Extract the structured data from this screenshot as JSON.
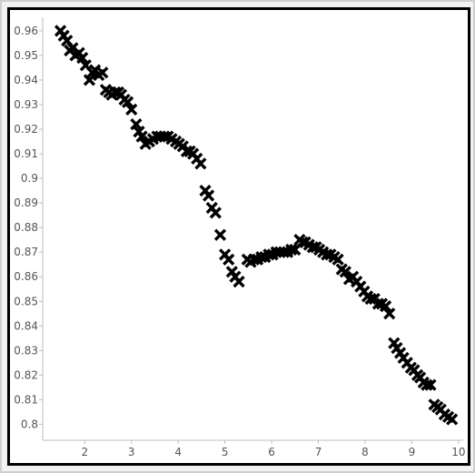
{
  "chart_data": {
    "type": "scatter",
    "title": "",
    "xlabel": "",
    "ylabel": "",
    "xlim": [
      1.1,
      10.1
    ],
    "ylim": [
      0.7935,
      0.9655
    ],
    "grid": false,
    "legend": "none",
    "marker": "x",
    "marker_color": "#000000",
    "x_ticks": [
      2,
      3,
      4,
      5,
      6,
      7,
      8,
      9,
      10
    ],
    "y_ticks": [
      0.8,
      0.81,
      0.82,
      0.83,
      0.84,
      0.85,
      0.86,
      0.87,
      0.88,
      0.89,
      0.9,
      0.91,
      0.92,
      0.93,
      0.94,
      0.95,
      0.96
    ],
    "x_tick_labels": [
      "2",
      "3",
      "4",
      "5",
      "6",
      "7",
      "8",
      "9",
      "10"
    ],
    "y_tick_labels": [
      "0.8",
      "0.81",
      "0.82",
      "0.83",
      "0.84",
      "0.85",
      "0.86",
      "0.87",
      "0.88",
      "0.89",
      "0.9",
      "0.91",
      "0.92",
      "0.93",
      "0.94",
      "0.95",
      "0.96"
    ],
    "series": [
      {
        "points": [
          [
            1.48,
            0.96
          ],
          [
            1.55,
            0.958
          ],
          [
            1.62,
            0.956
          ],
          [
            1.68,
            0.952
          ],
          [
            1.74,
            0.953
          ],
          [
            1.8,
            0.95
          ],
          [
            1.88,
            0.951
          ],
          [
            1.95,
            0.949
          ],
          [
            2.02,
            0.946
          ],
          [
            2.1,
            0.94
          ],
          [
            2.16,
            0.943
          ],
          [
            2.22,
            0.944
          ],
          [
            2.3,
            0.942
          ],
          [
            2.38,
            0.943
          ],
          [
            2.45,
            0.936
          ],
          [
            2.52,
            0.935
          ],
          [
            2.58,
            0.934
          ],
          [
            2.65,
            0.935
          ],
          [
            2.72,
            0.935
          ],
          [
            2.78,
            0.934
          ],
          [
            2.85,
            0.932
          ],
          [
            2.92,
            0.931
          ],
          [
            3.0,
            0.928
          ],
          [
            3.1,
            0.922
          ],
          [
            3.16,
            0.919
          ],
          [
            3.22,
            0.917
          ],
          [
            3.3,
            0.914
          ],
          [
            3.38,
            0.915
          ],
          [
            3.46,
            0.916
          ],
          [
            3.55,
            0.917
          ],
          [
            3.62,
            0.917
          ],
          [
            3.7,
            0.917
          ],
          [
            3.78,
            0.917
          ],
          [
            3.86,
            0.916
          ],
          [
            3.95,
            0.915
          ],
          [
            4.02,
            0.914
          ],
          [
            4.1,
            0.913
          ],
          [
            4.18,
            0.911
          ],
          [
            4.25,
            0.911
          ],
          [
            4.32,
            0.91
          ],
          [
            4.4,
            0.908
          ],
          [
            4.48,
            0.906
          ],
          [
            4.58,
            0.895
          ],
          [
            4.65,
            0.893
          ],
          [
            4.72,
            0.888
          ],
          [
            4.8,
            0.886
          ],
          [
            4.9,
            0.877
          ],
          [
            5.0,
            0.869
          ],
          [
            5.08,
            0.867
          ],
          [
            5.15,
            0.862
          ],
          [
            5.22,
            0.86
          ],
          [
            5.3,
            0.858
          ],
          [
            5.48,
            0.867
          ],
          [
            5.55,
            0.866
          ],
          [
            5.62,
            0.867
          ],
          [
            5.7,
            0.867
          ],
          [
            5.78,
            0.868
          ],
          [
            5.86,
            0.868
          ],
          [
            5.94,
            0.869
          ],
          [
            6.02,
            0.869
          ],
          [
            6.1,
            0.87
          ],
          [
            6.18,
            0.87
          ],
          [
            6.26,
            0.87
          ],
          [
            6.34,
            0.87
          ],
          [
            6.42,
            0.871
          ],
          [
            6.5,
            0.871
          ],
          [
            6.6,
            0.875
          ],
          [
            6.66,
            0.874
          ],
          [
            6.72,
            0.874
          ],
          [
            6.8,
            0.873
          ],
          [
            6.88,
            0.872
          ],
          [
            6.95,
            0.872
          ],
          [
            7.02,
            0.871
          ],
          [
            7.1,
            0.87
          ],
          [
            7.18,
            0.869
          ],
          [
            7.26,
            0.869
          ],
          [
            7.34,
            0.868
          ],
          [
            7.42,
            0.867
          ],
          [
            7.5,
            0.863
          ],
          [
            7.58,
            0.862
          ],
          [
            7.66,
            0.859
          ],
          [
            7.74,
            0.86
          ],
          [
            7.82,
            0.858
          ],
          [
            7.9,
            0.856
          ],
          [
            7.98,
            0.854
          ],
          [
            8.05,
            0.852
          ],
          [
            8.12,
            0.851
          ],
          [
            8.2,
            0.851
          ],
          [
            8.28,
            0.849
          ],
          [
            8.36,
            0.849
          ],
          [
            8.44,
            0.848
          ],
          [
            8.52,
            0.845
          ],
          [
            8.62,
            0.833
          ],
          [
            8.68,
            0.831
          ],
          [
            8.75,
            0.829
          ],
          [
            8.82,
            0.827
          ],
          [
            8.9,
            0.825
          ],
          [
            8.98,
            0.823
          ],
          [
            9.05,
            0.822
          ],
          [
            9.12,
            0.82
          ],
          [
            9.18,
            0.819
          ],
          [
            9.25,
            0.817
          ],
          [
            9.32,
            0.816
          ],
          [
            9.4,
            0.816
          ],
          [
            9.48,
            0.808
          ],
          [
            9.55,
            0.807
          ],
          [
            9.62,
            0.806
          ],
          [
            9.7,
            0.804
          ],
          [
            9.78,
            0.803
          ],
          [
            9.86,
            0.802
          ]
        ]
      }
    ]
  }
}
